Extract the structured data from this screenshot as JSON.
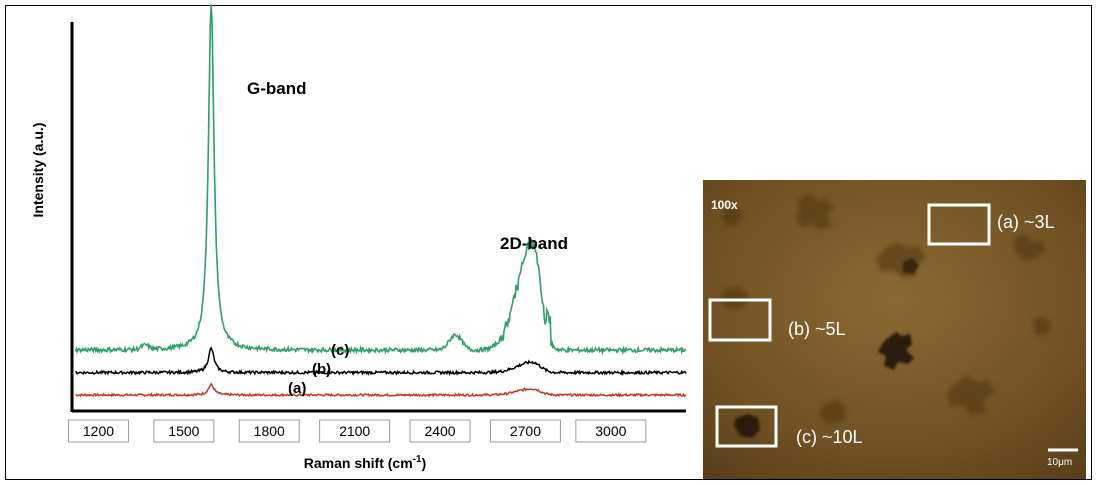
{
  "chart_data": {
    "type": "line",
    "xlabel": "Raman shift (cm",
    "xlabel_sup": "-1",
    "xlabel_end": ")",
    "ylabel": "Intensity (a.u.)",
    "xlim": [
      1100,
      3250
    ],
    "x_ticks": [
      "1200",
      "1500",
      "1800",
      "2100",
      "2400",
      "2700",
      "3000"
    ],
    "x_tick_values": [
      1200,
      1500,
      1800,
      2100,
      2400,
      2700,
      3000
    ],
    "annotations": [
      {
        "text": "G-band",
        "x": 1680,
        "y": 1.0
      },
      {
        "text": "2D-band",
        "x": 2710,
        "y": 0.3
      }
    ],
    "series": [
      {
        "name": "(a)",
        "color": "#c0392b",
        "offset": 0.0,
        "g_peak": 0.03,
        "d_peak": 0.018,
        "noise": 0.003
      },
      {
        "name": "(b)",
        "color": "#000000",
        "offset": 0.065,
        "g_peak": 0.07,
        "d_peak": 0.03,
        "noise": 0.004
      },
      {
        "name": "(c)",
        "color": "#2e9e6a",
        "offset": 0.13,
        "g_peak": 1.0,
        "d_peak": 0.31,
        "noise": 0.006
      }
    ],
    "peaks": {
      "G": 1582,
      "D2": 2710
    }
  },
  "micrograph": {
    "magnification": "100x",
    "scale_bar": "10μm",
    "regions": [
      {
        "label": "(a) ~3L"
      },
      {
        "label": "(b) ~5L"
      },
      {
        "label": "(c) ~10L"
      }
    ]
  }
}
